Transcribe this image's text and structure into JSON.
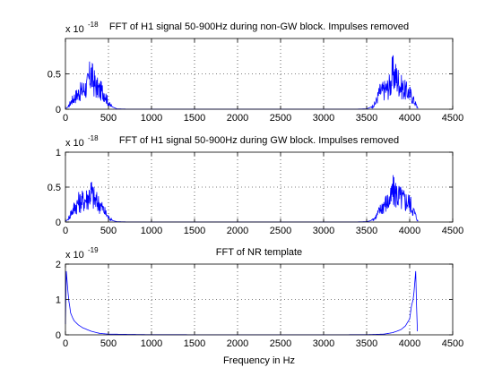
{
  "figure": {
    "xlabel": "Frequency in Hz",
    "line_color": "#0000ff",
    "axes_color": "#000000",
    "grid": true,
    "grid_style": "dotted"
  },
  "chart_data": [
    {
      "type": "line",
      "title": "FFT of H1 signal 50-900Hz during non-GW block. Impulses removed",
      "xlabel": "",
      "ylabel": "",
      "xlim": [
        0,
        4500
      ],
      "ylim": [
        0,
        1
      ],
      "y_exponent_label": "x 10",
      "y_exponent": "-18",
      "xticks": [
        0,
        500,
        1000,
        1500,
        2000,
        2500,
        3000,
        3500,
        4000,
        4500
      ],
      "yticks": [
        0,
        0.5
      ],
      "ytick_labels": [
        "0",
        "0.5"
      ],
      "series": [
        {
          "x": [
            0,
            30,
            60,
            100,
            150,
            200,
            250,
            280,
            300,
            320,
            340,
            360,
            400,
            450,
            500,
            550,
            600,
            700,
            3400,
            3500,
            3550,
            3600,
            3650,
            3700,
            3750,
            3780,
            3800,
            3850,
            3900,
            3950,
            4000,
            4030,
            4060,
            4096
          ],
          "y": [
            0.01,
            0.03,
            0.12,
            0.2,
            0.28,
            0.33,
            0.4,
            0.55,
            0.63,
            0.5,
            0.45,
            0.38,
            0.33,
            0.3,
            0.1,
            0.03,
            0.005,
            0.002,
            0.002,
            0.005,
            0.03,
            0.1,
            0.3,
            0.33,
            0.38,
            0.45,
            0.63,
            0.55,
            0.4,
            0.33,
            0.28,
            0.2,
            0.12,
            0.01
          ]
        }
      ]
    },
    {
      "type": "line",
      "title": "FFT of H1 signal 50-900Hz during GW block. Impulses removed",
      "xlabel": "",
      "ylabel": "",
      "xlim": [
        0,
        4500
      ],
      "ylim": [
        0,
        1
      ],
      "y_exponent_label": "x 10",
      "y_exponent": "-18",
      "xticks": [
        0,
        500,
        1000,
        1500,
        2000,
        2500,
        3000,
        3500,
        4000,
        4500
      ],
      "yticks": [
        0,
        0.5,
        1
      ],
      "ytick_labels": [
        "0",
        "0.5",
        "1"
      ],
      "series": [
        {
          "x": [
            0,
            30,
            60,
            100,
            150,
            200,
            250,
            280,
            300,
            320,
            340,
            360,
            400,
            450,
            500,
            550,
            600,
            700,
            3400,
            3500,
            3550,
            3600,
            3650,
            3700,
            3750,
            3780,
            3800,
            3850,
            3900,
            3950,
            4000,
            4030,
            4060,
            4096
          ],
          "y": [
            0.01,
            0.04,
            0.15,
            0.25,
            0.35,
            0.38,
            0.42,
            0.5,
            0.55,
            0.45,
            0.4,
            0.36,
            0.32,
            0.2,
            0.08,
            0.02,
            0.005,
            0.002,
            0.002,
            0.005,
            0.02,
            0.08,
            0.2,
            0.32,
            0.36,
            0.4,
            0.55,
            0.5,
            0.42,
            0.38,
            0.35,
            0.25,
            0.15,
            0.01
          ]
        }
      ]
    },
    {
      "type": "line",
      "title": "FFT of NR template",
      "xlabel": "Frequency in Hz",
      "ylabel": "",
      "xlim": [
        0,
        4500
      ],
      "ylim": [
        0,
        2
      ],
      "y_exponent_label": "x 10",
      "y_exponent": "-19",
      "xticks": [
        0,
        500,
        1000,
        1500,
        2000,
        2500,
        3000,
        3500,
        4000,
        4500
      ],
      "yticks": [
        0,
        1,
        2
      ],
      "ytick_labels": [
        "0",
        "1",
        "2"
      ],
      "series": [
        {
          "x": [
            0,
            10,
            20,
            30,
            40,
            50,
            60,
            80,
            100,
            150,
            200,
            250,
            300,
            350,
            400,
            500,
            1000,
            2000,
            3000,
            3500,
            3700,
            3800,
            3850,
            3900,
            3950,
            4000,
            4020,
            4040,
            4050,
            4060,
            4070,
            4080,
            4090
          ],
          "y": [
            0.3,
            1.8,
            1.5,
            1.2,
            0.95,
            0.8,
            0.62,
            0.5,
            0.4,
            0.28,
            0.2,
            0.15,
            0.1,
            0.07,
            0.04,
            0.02,
            0.005,
            0.003,
            0.003,
            0.005,
            0.02,
            0.06,
            0.1,
            0.15,
            0.25,
            0.45,
            0.8,
            1.0,
            1.2,
            1.5,
            1.8,
            0.8,
            0.1
          ]
        }
      ]
    }
  ]
}
